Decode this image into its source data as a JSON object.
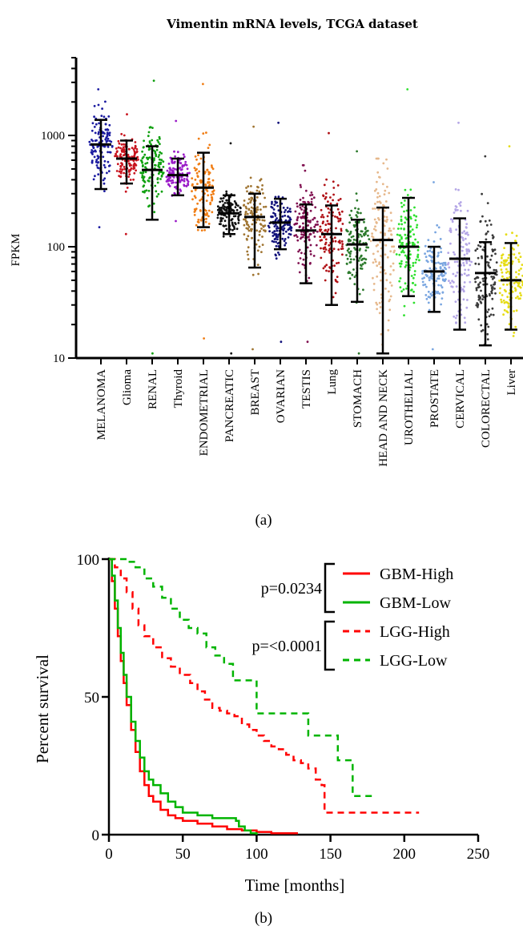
{
  "chart_data": [
    {
      "type": "scatter",
      "panel_label": "a",
      "title": "Vimentin mRNA levels, TCGA dataset",
      "xlabel": "",
      "ylabel": "FPKM",
      "y_scale": "log",
      "ylim": [
        10,
        5000
      ],
      "y_ticks": [
        10,
        100,
        1000
      ],
      "y_tick_labels": [
        "10",
        "100",
        "1000"
      ],
      "categories": [
        "MELANOMA",
        "Glioma",
        "RENAL",
        "Thyroid",
        "ENDOMETRIAL",
        "PANCREATIC",
        "BREAST",
        "OVARIAN",
        "TESTIS",
        "Lung",
        "STOMACH",
        "HEAD AND NECK",
        "UROTHELIAL",
        "PROSTATE",
        "CERVICAL",
        "COLORECTAL",
        "Liver"
      ],
      "colors": [
        "#1a1aa0",
        "#c8141e",
        "#0fa00f",
        "#9a1bc8",
        "#f07d14",
        "#111111",
        "#a07532",
        "#10107a",
        "#801050",
        "#b01015",
        "#2c7a2c",
        "#e6b88c",
        "#2ee02e",
        "#7aa6e0",
        "#b4a6e6",
        "#3a3a3a",
        "#e6dc14"
      ],
      "series": [
        {
          "name": "MELANOMA",
          "median": 830,
          "upper": 1380,
          "lower": 330,
          "max": 2600,
          "min": 150
        },
        {
          "name": "Glioma",
          "median": 620,
          "upper": 900,
          "lower": 370,
          "max": 1550,
          "min": 130
        },
        {
          "name": "RENAL",
          "median": 490,
          "upper": 800,
          "lower": 175,
          "max": 3100,
          "min": 11
        },
        {
          "name": "Thyroid",
          "median": 440,
          "upper": 620,
          "lower": 290,
          "max": 1350,
          "min": 170
        },
        {
          "name": "ENDOMETRIAL",
          "median": 340,
          "upper": 700,
          "lower": 150,
          "max": 2900,
          "min": 15
        },
        {
          "name": "PANCREATIC",
          "median": 200,
          "upper": 290,
          "lower": 130,
          "max": 850,
          "min": 11
        },
        {
          "name": "BREAST",
          "median": 185,
          "upper": 300,
          "lower": 65,
          "max": 1200,
          "min": 12
        },
        {
          "name": "OVARIAN",
          "median": 165,
          "upper": 270,
          "lower": 95,
          "max": 1300,
          "min": 14
        },
        {
          "name": "TESTIS",
          "median": 140,
          "upper": 240,
          "lower": 47,
          "max": 540,
          "min": 14
        },
        {
          "name": "Lung",
          "median": 130,
          "upper": 235,
          "lower": 30,
          "max": 1050,
          "min": 10
        },
        {
          "name": "STOMACH",
          "median": 105,
          "upper": 175,
          "lower": 32,
          "max": 720,
          "min": 11
        },
        {
          "name": "HEAD AND NECK",
          "median": 115,
          "upper": 225,
          "lower": 11,
          "max": 620,
          "min": 10
        },
        {
          "name": "UROTHELIAL",
          "median": 100,
          "upper": 275,
          "lower": 36,
          "max": 2600,
          "min": 10
        },
        {
          "name": "PROSTATE",
          "median": 60,
          "upper": 100,
          "lower": 26,
          "max": 380,
          "min": 12
        },
        {
          "name": "CERVICAL",
          "median": 78,
          "upper": 180,
          "lower": 18,
          "max": 1300,
          "min": 10
        },
        {
          "name": "COLORECTAL",
          "median": 58,
          "upper": 110,
          "lower": 13,
          "max": 650,
          "min": 10
        },
        {
          "name": "Liver",
          "median": 50,
          "upper": 108,
          "lower": 18,
          "max": 800,
          "min": 10
        }
      ]
    },
    {
      "type": "line",
      "panel_label": "b",
      "xlabel": "Time [months]",
      "ylabel": "Percent survival",
      "xlim": [
        0,
        250
      ],
      "ylim": [
        0,
        100
      ],
      "x_ticks": [
        0,
        50,
        100,
        150,
        200,
        250
      ],
      "x_tick_labels": [
        "0",
        "50",
        "100",
        "150",
        "200",
        "250"
      ],
      "y_ticks": [
        0,
        50,
        100
      ],
      "y_tick_labels": [
        "0",
        "50",
        "100"
      ],
      "legend_position": "top-right",
      "annotations": [
        {
          "text": "p=0.0234",
          "compares": [
            "GBM-High",
            "GBM-Low"
          ]
        },
        {
          "text": "p=<0.0001",
          "compares": [
            "LGG-High",
            "LGG-Low"
          ]
        }
      ],
      "series": [
        {
          "name": "GBM-High",
          "color": "#ff0000",
          "dash": "solid",
          "x": [
            0,
            2,
            4,
            6,
            8,
            10,
            12,
            15,
            18,
            21,
            24,
            27,
            30,
            35,
            40,
            45,
            50,
            60,
            70,
            80,
            90,
            100,
            110,
            128
          ],
          "y": [
            100,
            92,
            82,
            72,
            63,
            55,
            47,
            38,
            30,
            23,
            18,
            14,
            12,
            9,
            7,
            6,
            5,
            4,
            3,
            2,
            1.5,
            1,
            0.5,
            0.5
          ]
        },
        {
          "name": "GBM-Low",
          "color": "#00b400",
          "dash": "solid",
          "x": [
            0,
            2,
            4,
            6,
            8,
            10,
            12,
            15,
            18,
            21,
            24,
            27,
            30,
            35,
            40,
            45,
            50,
            60,
            70,
            80,
            84,
            86,
            88,
            92,
            96,
            100
          ],
          "y": [
            100,
            94,
            85,
            75,
            66,
            58,
            50,
            41,
            34,
            28,
            23,
            20,
            18,
            15,
            12,
            10,
            8,
            7,
            6,
            6,
            6,
            5,
            3,
            1.5,
            0.5,
            0
          ]
        },
        {
          "name": "LGG-High",
          "color": "#ff0000",
          "dash": "dashed",
          "x": [
            0,
            4,
            8,
            12,
            16,
            20,
            24,
            30,
            36,
            42,
            48,
            55,
            60,
            65,
            70,
            75,
            80,
            85,
            90,
            95,
            100,
            105,
            110,
            115,
            120,
            125,
            130,
            135,
            140,
            144,
            146,
            148,
            160,
            170,
            180,
            190,
            200,
            210
          ],
          "y": [
            100,
            97,
            93,
            88,
            82,
            76,
            72,
            68,
            64,
            61,
            58,
            55,
            52,
            49,
            46,
            45,
            44,
            43,
            40,
            38,
            36,
            34,
            32,
            31,
            29,
            27,
            26,
            24,
            20,
            18,
            8,
            8,
            8,
            8,
            8,
            8,
            8,
            8
          ]
        },
        {
          "name": "LGG-Low",
          "color": "#00b400",
          "dash": "dashed",
          "x": [
            0,
            8,
            12,
            18,
            24,
            30,
            36,
            42,
            48,
            54,
            60,
            66,
            72,
            78,
            84,
            90,
            100,
            110,
            120,
            130,
            135,
            150,
            155,
            160,
            165,
            170,
            175,
            180
          ],
          "y": [
            100,
            100,
            99,
            97,
            93,
            90,
            86,
            82,
            78,
            75,
            73,
            68,
            65,
            62,
            56,
            56,
            44,
            44,
            44,
            44,
            36,
            36,
            27,
            27,
            14,
            14,
            14,
            14
          ]
        }
      ]
    }
  ],
  "figure": {
    "caption_a": "(a)",
    "caption_b": "(b)"
  }
}
